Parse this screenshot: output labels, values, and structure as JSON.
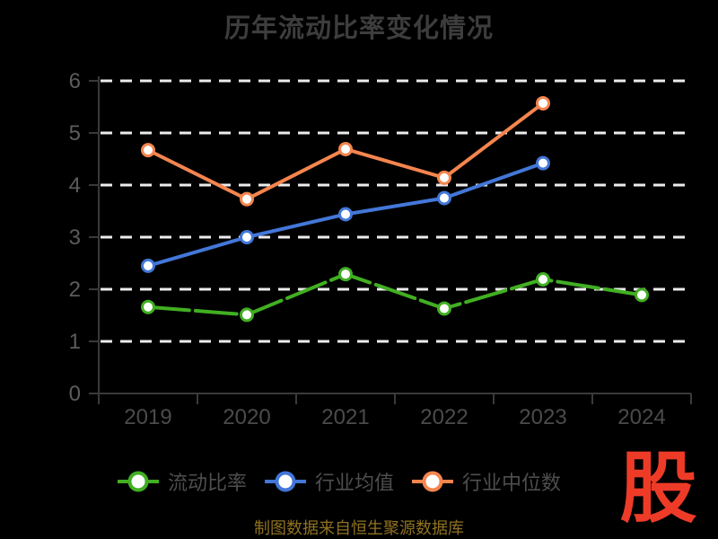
{
  "title": "历年流动比率变化情况",
  "source_note": "制图数据来自恒生聚源数据库",
  "logo_text": "股",
  "colors": {
    "background": "#000000",
    "title_text": "#3d3d3d",
    "axis_line": "#3a3a3a",
    "x_label": "#4b4b4b",
    "y_label": "#5c5c5c",
    "grid_line": "#ececec",
    "legend_text": "#4e4e4e",
    "marker_fill": "#ffffff",
    "source_gold": "#8f7220",
    "logo_red": "#ee3b28"
  },
  "chart_data": {
    "type": "line",
    "title": "历年流动比率变化情况",
    "categories": [
      "2019",
      "2020",
      "2021",
      "2022",
      "2023",
      "2024"
    ],
    "series": [
      {
        "name": "流动比率",
        "color": "#41af22",
        "dashed": true,
        "values": [
          1.66,
          1.51,
          2.29,
          1.63,
          2.19,
          1.89
        ]
      },
      {
        "name": "行业均值",
        "color": "#4377d8",
        "dashed": false,
        "values": [
          2.45,
          3.0,
          3.44,
          3.75,
          4.42,
          null
        ]
      },
      {
        "name": "行业中位数",
        "color": "#f4854e",
        "dashed": false,
        "values": [
          4.67,
          3.73,
          4.69,
          4.14,
          5.57,
          null
        ]
      }
    ],
    "xlabel": "",
    "ylabel": "",
    "ylim": [
      0,
      6
    ],
    "y_ticks": [
      0,
      1,
      2,
      3,
      4,
      5,
      6
    ],
    "grid": "horizontal-dashed-white",
    "legend_position": "bottom",
    "x_axis_boundary_gap": true
  }
}
